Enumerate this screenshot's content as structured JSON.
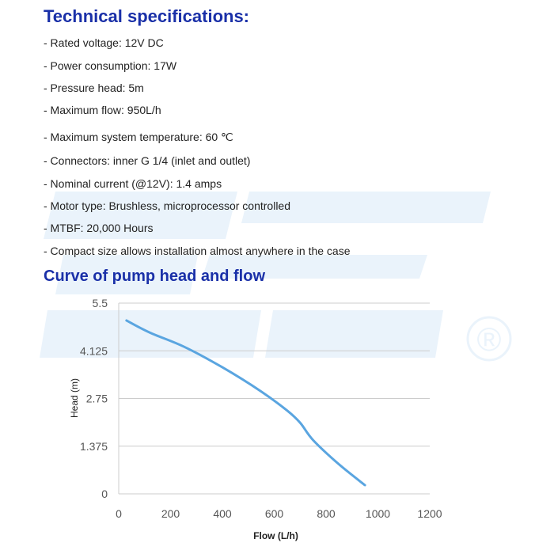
{
  "title": "Technical specifications:",
  "specs": [
    "- Rated voltage:  12V DC",
    "- Power consumption:  17W",
    "- Pressure head:   5m",
    "- Maximum flow:  950L/h",
    "- Maximum system temperature:  60 ℃",
    "- Connectors:  inner G 1/4 (inlet and outlet)",
    "- Nominal current (@12V):  1.4 amps",
    "- Motor type:  Brushless, microprocessor controlled",
    "- MTBF:  20,000 Hours",
    "- Compact size allows installation almost anywhere in the case"
  ],
  "watermark_symbol": "®",
  "colors": {
    "title": "#1a30a8",
    "curve": "#5aa5e0",
    "grid": "#cccccc",
    "watermark": "#eaf3fb"
  },
  "chart_data": {
    "type": "line",
    "title": "Curve of pump head and flow",
    "xlabel": "Flow (L/h)",
    "ylabel": "Head (m)",
    "xlim": [
      0,
      1200
    ],
    "ylim": [
      0,
      5.5
    ],
    "xticks": [
      "0",
      "200",
      "400",
      "600",
      "800",
      "1000",
      "1200"
    ],
    "yticks": [
      "0",
      "1.375",
      "2.75",
      "4.125",
      "5.5"
    ],
    "grid": true,
    "series": [
      {
        "name": "Head",
        "x": [
          30,
          120,
          250,
          400,
          550,
          650,
          700,
          750,
          850,
          950
        ],
        "y": [
          5.0,
          4.65,
          4.25,
          3.65,
          2.95,
          2.4,
          2.05,
          1.55,
          0.85,
          0.25
        ]
      }
    ]
  }
}
